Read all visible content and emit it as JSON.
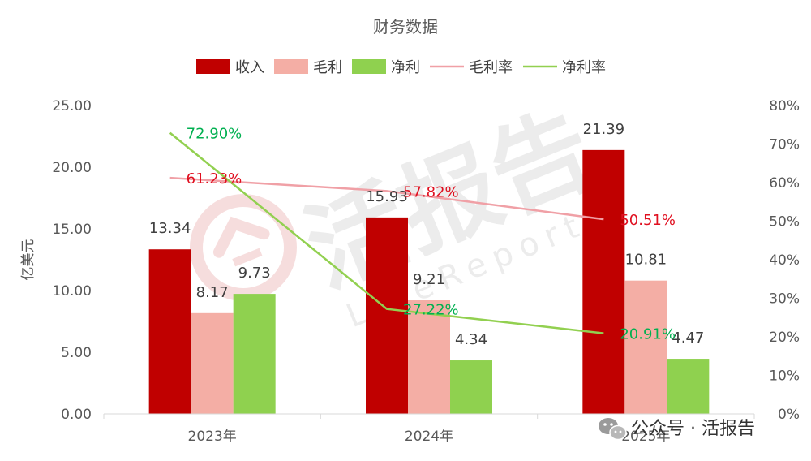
{
  "chart_data": {
    "type": "bar",
    "title": "财务数据",
    "categories": [
      "2023年",
      "2024年",
      "2025年"
    ],
    "ylabel": "亿美元",
    "ylim": [
      0,
      25
    ],
    "y_ticks": [
      "0.00",
      "5.00",
      "10.00",
      "15.00",
      "20.00",
      "25.00"
    ],
    "y2lim": [
      0,
      80
    ],
    "y2_ticks": [
      "0%",
      "10%",
      "20%",
      "30%",
      "40%",
      "50%",
      "60%",
      "70%",
      "80%"
    ],
    "grid": false,
    "legend_position": "top",
    "bar_series": [
      {
        "name": "收入",
        "color": "#c00000",
        "values": [
          13.34,
          15.93,
          21.39
        ],
        "labels": [
          "13.34",
          "15.93",
          "21.39"
        ]
      },
      {
        "name": "毛利",
        "color": "#f4aea5",
        "values": [
          8.17,
          9.21,
          10.81
        ],
        "labels": [
          "8.17",
          "9.21",
          "10.81"
        ]
      },
      {
        "name": "净利",
        "color": "#8fd14f",
        "values": [
          9.73,
          4.34,
          4.47
        ],
        "labels": [
          "9.73",
          "4.34",
          "4.47"
        ]
      }
    ],
    "line_series": [
      {
        "name": "毛利率",
        "color": "#f0a0a6",
        "label_color": "#e01020",
        "values": [
          61.23,
          57.82,
          50.51
        ],
        "labels": [
          "61.23%",
          "57.82%",
          "50.51%"
        ]
      },
      {
        "name": "净利率",
        "color": "#92d050",
        "label_color": "#00b050",
        "values": [
          72.9,
          27.22,
          20.91
        ],
        "labels": [
          "72.90%",
          "27.22%",
          "20.91%"
        ]
      }
    ]
  },
  "watermark": {
    "main_text": "活报告",
    "sub_text": "LiveReport"
  },
  "footer": {
    "account_label": "公众号 · 活报告"
  }
}
